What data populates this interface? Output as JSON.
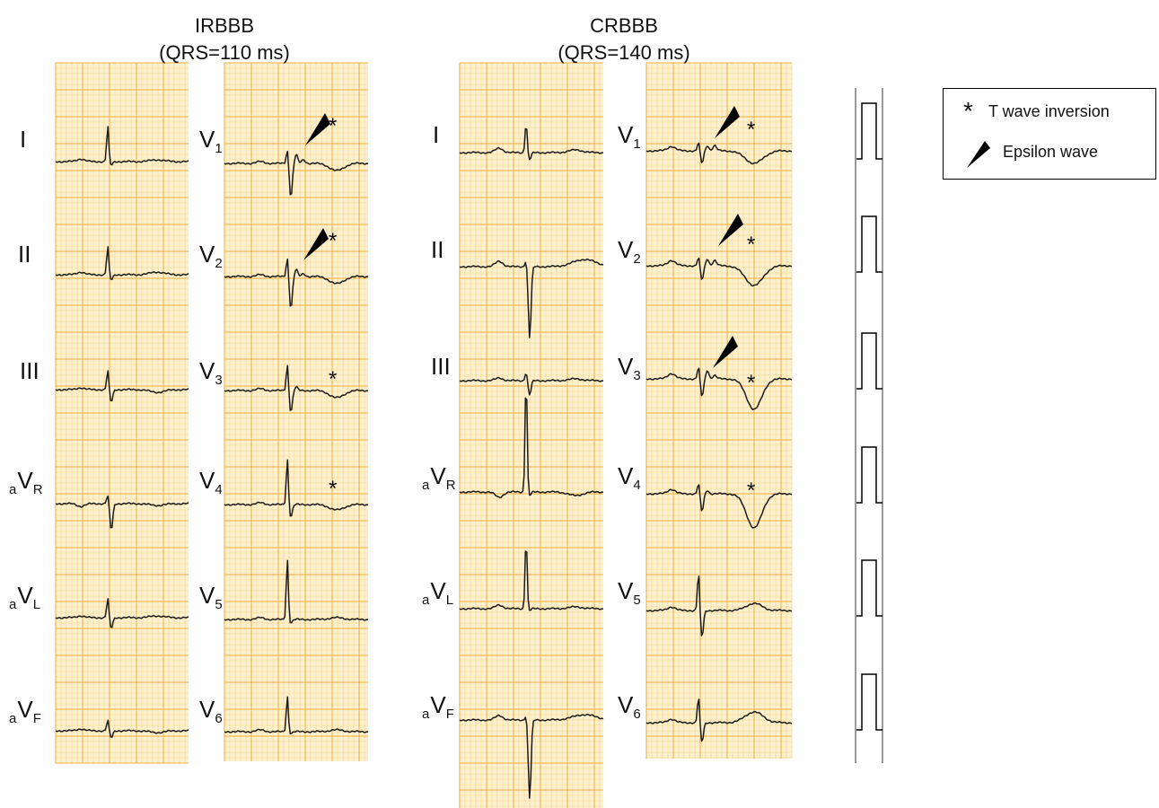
{
  "titles": {
    "left": {
      "name": "IRBBB",
      "qrs": "(QRS=110 ms)"
    },
    "right": {
      "name": "CRBBB",
      "qrs": "(QRS=140 ms)"
    }
  },
  "limb_leads": [
    {
      "base": "I",
      "pre": "",
      "sub": ""
    },
    {
      "base": "II",
      "pre": "",
      "sub": ""
    },
    {
      "base": "III",
      "pre": "",
      "sub": ""
    },
    {
      "base": "V",
      "pre": "a",
      "sub": "R"
    },
    {
      "base": "V",
      "pre": "a",
      "sub": "L"
    },
    {
      "base": "V",
      "pre": "a",
      "sub": "F"
    }
  ],
  "precordial_leads": [
    {
      "base": "V",
      "sub": "1"
    },
    {
      "base": "V",
      "sub": "2"
    },
    {
      "base": "V",
      "sub": "3"
    },
    {
      "base": "V",
      "sub": "4"
    },
    {
      "base": "V",
      "sub": "5"
    },
    {
      "base": "V",
      "sub": "6"
    }
  ],
  "legend": {
    "star_symbol": "*",
    "star_label": "T wave inversion",
    "triangle_label": "Epsilon wave"
  },
  "marker_symbol": "*",
  "colors": {
    "paper": "#fdf1cf",
    "grid_minor": "#f6d38a",
    "grid_major": "#eeae3c",
    "trace": "#1a1a1a",
    "calibration_bg": "#ffffff",
    "calibration_border": "#9a9a9a"
  }
}
